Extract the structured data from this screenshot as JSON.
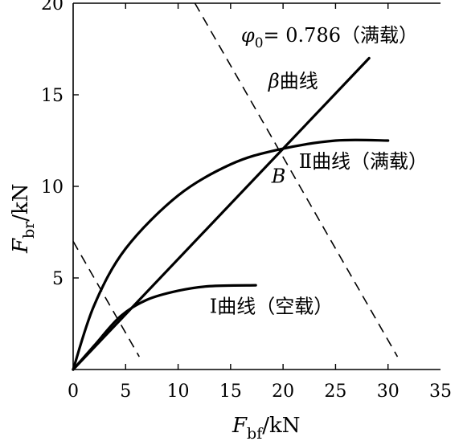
{
  "chart_data": {
    "type": "line",
    "xlabel_main": "F",
    "xlabel_sub": "bf",
    "xlabel_unit": "/kN",
    "ylabel_main": "F",
    "ylabel_sub": "br",
    "ylabel_unit": "/kN",
    "xlim": [
      0,
      35
    ],
    "ylim": [
      0,
      20
    ],
    "x_ticks": [
      0,
      5,
      10,
      15,
      20,
      25,
      30,
      35
    ],
    "y_ticks": [
      5,
      10,
      15,
      20
    ],
    "grid": false,
    "series": [
      {
        "name": "β曲线",
        "style": "solid",
        "points": [
          [
            0,
            0
          ],
          [
            28.2,
            17
          ]
        ]
      },
      {
        "name": "Ⅱ曲线（满载）",
        "style": "solid",
        "points": [
          [
            0,
            0
          ],
          [
            2,
            3.5
          ],
          [
            5,
            6.6
          ],
          [
            10,
            9.5
          ],
          [
            15,
            11.2
          ],
          [
            19.5,
            12
          ],
          [
            25,
            12.5
          ],
          [
            30,
            12.5
          ]
        ]
      },
      {
        "name": "Ⅰ曲线（空载）",
        "style": "solid",
        "points": [
          [
            0,
            0
          ],
          [
            2,
            1.3
          ],
          [
            4.5,
            2.9
          ],
          [
            7,
            3.8
          ],
          [
            10,
            4.3
          ],
          [
            13,
            4.55
          ],
          [
            17.4,
            4.6
          ]
        ]
      },
      {
        "name": "φ0= 0.786（满载）",
        "style": "dashed",
        "points": [
          [
            11.6,
            20
          ],
          [
            30.9,
            0.7
          ]
        ]
      },
      {
        "name": "",
        "style": "dashed",
        "points": [
          [
            0,
            7
          ],
          [
            6.3,
            0.7
          ]
        ]
      }
    ],
    "annotations": [
      {
        "id": "phi0",
        "phi": "φ",
        "sub": "0",
        "text": "= 0.786（满载）",
        "x": 16,
        "y": 17.9
      },
      {
        "id": "beta",
        "text": "β曲线",
        "x": 18.6,
        "y": 15.4
      },
      {
        "id": "curve2",
        "text": "Ⅱ曲线（满载）",
        "x": 21.5,
        "y": 11
      },
      {
        "id": "pointB",
        "text": "B",
        "x": 18.9,
        "y": 10.2
      },
      {
        "id": "curve1",
        "text": "Ⅰ曲线（空载）",
        "x": 13,
        "y": 3.1
      }
    ]
  }
}
